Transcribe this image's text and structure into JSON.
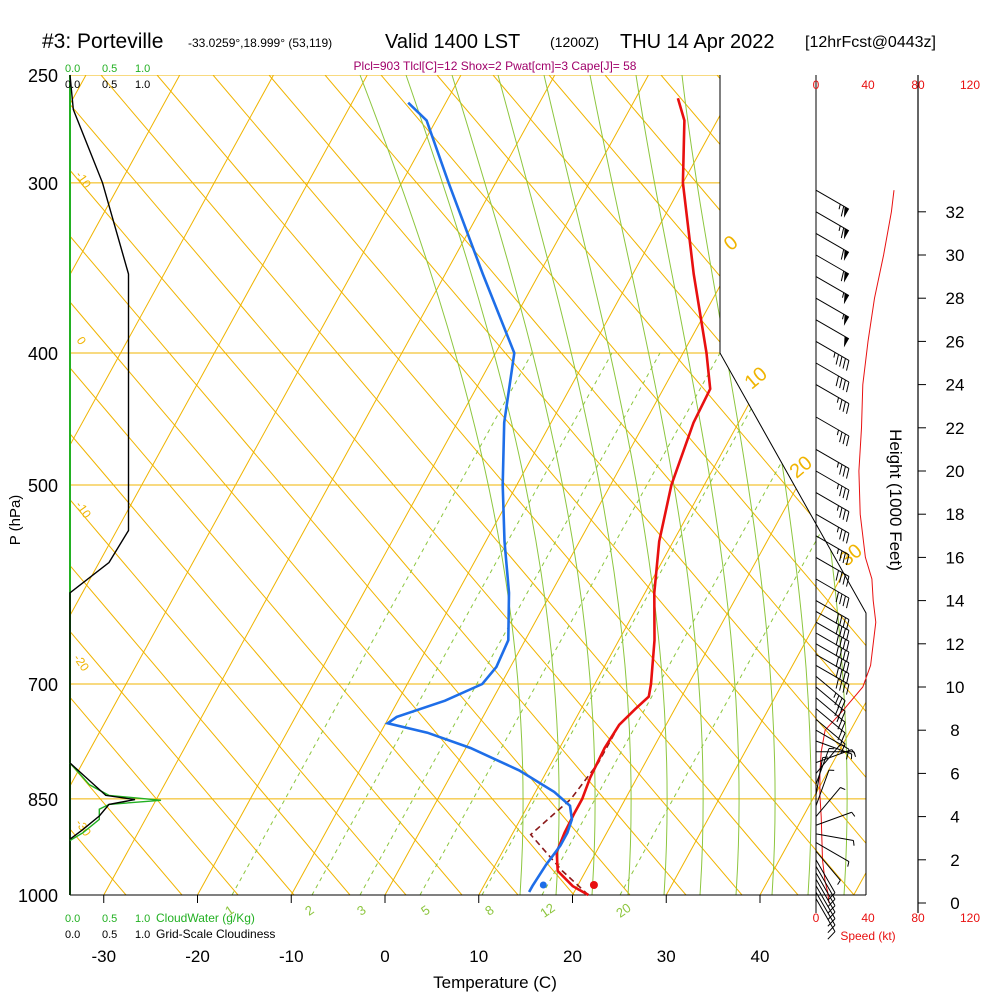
{
  "header": {
    "station": "#3: Porteville",
    "coords": "-33.0259°,18.999° (53,119)",
    "valid": "Valid 1400 LST",
    "zulu": "(1200Z)",
    "date": "THU 14 Apr 2022",
    "forecast": "[12hrFcst@0443z]"
  },
  "indices": "Plcl=903 Tlcl[C]=12 Shox=2 Pwat[cm]=3 Cape[J]= 58",
  "legends": {
    "cloudwater_ticks": [
      "0.0",
      "0.5",
      "1.0"
    ],
    "cloudwater_label": "CloudWater (g/Kg)",
    "cloudiness_ticks": [
      "0.0",
      "0.5",
      "1.0"
    ],
    "cloudiness_label": "Grid-Scale Cloudiness",
    "speed_ticks": [
      "0",
      "40",
      "80",
      "120"
    ],
    "speed_label": "Speed (kt)"
  },
  "colors": {
    "isotherm": "#f0b400",
    "dry_adiabat": "#8dc63f",
    "mixing_ratio": "#8dc63f",
    "temperature": "#e81010",
    "dewpoint": "#1e6ee8",
    "parcel": "#8b1a1a",
    "cloudwater": "#22b022",
    "cloudiness": "#000000",
    "wind_speed": "#e81010",
    "indices_text": "#a0006a"
  },
  "chart_data": {
    "type": "skew-t",
    "xlabel": "Temperature (C)",
    "ylabel": "P (hPa)",
    "y2label": "Height (1000 Feet)",
    "xticks": [
      -30,
      -20,
      -10,
      0,
      10,
      20,
      30,
      40
    ],
    "pressure_ticks": [
      250,
      300,
      400,
      500,
      700,
      850,
      1000
    ],
    "height_ticks_kft": [
      0,
      2,
      4,
      6,
      8,
      10,
      12,
      14,
      16,
      18,
      20,
      22,
      24,
      26,
      28,
      30,
      32
    ],
    "isotherm_labels": [
      "-10",
      "0",
      "10",
      "20",
      "30"
    ],
    "lower_isotherm_labels": [
      "0",
      "-10",
      "-20",
      "-30"
    ],
    "mixing_ratio_labels": [
      "1",
      "2",
      "3",
      "5",
      "8",
      "12",
      "20"
    ],
    "temperature": [
      [
        1000,
        21.7
      ],
      [
        985,
        19.5
      ],
      [
        960,
        17.0
      ],
      [
        930,
        15.8
      ],
      [
        900,
        15.5
      ],
      [
        870,
        15.4
      ],
      [
        850,
        15.4
      ],
      [
        820,
        15.0
      ],
      [
        780,
        14.8
      ],
      [
        750,
        15.0
      ],
      [
        730,
        15.8
      ],
      [
        715,
        16.5
      ],
      [
        700,
        16.0
      ],
      [
        650,
        13.8
      ],
      [
        600,
        11.0
      ],
      [
        550,
        8.5
      ],
      [
        500,
        6.5
      ],
      [
        450,
        5.2
      ],
      [
        425,
        5.0
      ],
      [
        400,
        2.5
      ],
      [
        350,
        -3.5
      ],
      [
        300,
        -10.0
      ],
      [
        270,
        -13.5
      ],
      [
        260,
        -15.5
      ]
    ],
    "dewpoint": [
      [
        995,
        15.2
      ],
      [
        985,
        15.2
      ],
      [
        950,
        15.4
      ],
      [
        920,
        15.8
      ],
      [
        900,
        15.8
      ],
      [
        880,
        15.5
      ],
      [
        860,
        14.5
      ],
      [
        840,
        12.0
      ],
      [
        810,
        7.0
      ],
      [
        780,
        0.5
      ],
      [
        760,
        -5.0
      ],
      [
        748,
        -9.8
      ],
      [
        740,
        -9.2
      ],
      [
        720,
        -5.0
      ],
      [
        700,
        -2.0
      ],
      [
        680,
        -1.5
      ],
      [
        650,
        -1.8
      ],
      [
        600,
        -4.5
      ],
      [
        550,
        -8.0
      ],
      [
        500,
        -11.5
      ],
      [
        450,
        -15.0
      ],
      [
        400,
        -18.0
      ],
      [
        350,
        -26.0
      ],
      [
        300,
        -35.0
      ],
      [
        270,
        -41.0
      ],
      [
        262,
        -44.0
      ]
    ],
    "surface_dewpoint_point": [
      1000,
      16.3
    ],
    "surface_temperature_point": [
      1000,
      21.7
    ],
    "parcel": [
      [
        1000,
        21.7
      ],
      [
        960,
        17.5
      ],
      [
        903,
        12.0
      ],
      [
        850,
        14.2
      ],
      [
        800,
        15.0
      ],
      [
        760,
        15.0
      ]
    ],
    "wind_speed_kt": [
      [
        0,
        10
      ],
      [
        0.5,
        9
      ],
      [
        1,
        7
      ],
      [
        2,
        5
      ],
      [
        4,
        4
      ],
      [
        5,
        3
      ],
      [
        6,
        3
      ],
      [
        7,
        4
      ],
      [
        8,
        7
      ],
      [
        9,
        22
      ],
      [
        10,
        36
      ],
      [
        11,
        42
      ],
      [
        12,
        44
      ],
      [
        13,
        46
      ],
      [
        14,
        44
      ],
      [
        15,
        43
      ],
      [
        16,
        38
      ],
      [
        18,
        34
      ],
      [
        20,
        33
      ],
      [
        22,
        35
      ],
      [
        24,
        36
      ],
      [
        26,
        40
      ],
      [
        28,
        45
      ],
      [
        30,
        52
      ],
      [
        32,
        58
      ],
      [
        33,
        60
      ]
    ],
    "wind_barbs": [
      {
        "h": 0.2,
        "dir": 330,
        "spd": 10
      },
      {
        "h": 0.5,
        "dir": 330,
        "spd": 10
      },
      {
        "h": 0.8,
        "dir": 330,
        "spd": 10
      },
      {
        "h": 1.1,
        "dir": 330,
        "spd": 10
      },
      {
        "h": 1.4,
        "dir": 330,
        "spd": 10
      },
      {
        "h": 1.7,
        "dir": 330,
        "spd": 10
      },
      {
        "h": 2.0,
        "dir": 330,
        "spd": 10
      },
      {
        "h": 2.4,
        "dir": 320,
        "spd": 5
      },
      {
        "h": 2.8,
        "dir": 300,
        "spd": 5
      },
      {
        "h": 3.2,
        "dir": 280,
        "spd": 5
      },
      {
        "h": 3.6,
        "dir": 250,
        "spd": 5
      },
      {
        "h": 4.0,
        "dir": 220,
        "spd": 5
      },
      {
        "h": 4.5,
        "dir": 200,
        "spd": 5
      },
      {
        "h": 5.0,
        "dir": 190,
        "spd": 5
      },
      {
        "h": 5.5,
        "dir": 200,
        "spd": 5
      },
      {
        "h": 6.0,
        "dir": 220,
        "spd": 5
      },
      {
        "h": 6.5,
        "dir": 250,
        "spd": 5
      },
      {
        "h": 7.0,
        "dir": 270,
        "spd": 5
      },
      {
        "h": 7.5,
        "dir": 290,
        "spd": 5
      },
      {
        "h": 8.0,
        "dir": 300,
        "spd": 10
      },
      {
        "h": 8.5,
        "dir": 310,
        "spd": 15
      },
      {
        "h": 9.0,
        "dir": 310,
        "spd": 20
      },
      {
        "h": 9.5,
        "dir": 310,
        "spd": 25
      },
      {
        "h": 10.0,
        "dir": 310,
        "spd": 30
      },
      {
        "h": 10.5,
        "dir": 310,
        "spd": 35
      },
      {
        "h": 11.0,
        "dir": 300,
        "spd": 40
      },
      {
        "h": 11.5,
        "dir": 300,
        "spd": 40
      },
      {
        "h": 12.0,
        "dir": 300,
        "spd": 40
      },
      {
        "h": 12.5,
        "dir": 300,
        "spd": 40
      },
      {
        "h": 13.0,
        "dir": 300,
        "spd": 40
      },
      {
        "h": 13.5,
        "dir": 300,
        "spd": 40
      },
      {
        "h": 14.0,
        "dir": 300,
        "spd": 40
      },
      {
        "h": 15.0,
        "dir": 300,
        "spd": 40
      },
      {
        "h": 16.0,
        "dir": 300,
        "spd": 40
      },
      {
        "h": 17.0,
        "dir": 300,
        "spd": 35
      },
      {
        "h": 18.0,
        "dir": 300,
        "spd": 35
      },
      {
        "h": 19.0,
        "dir": 300,
        "spd": 35
      },
      {
        "h": 20.0,
        "dir": 300,
        "spd": 35
      },
      {
        "h": 21.0,
        "dir": 300,
        "spd": 35
      },
      {
        "h": 22.5,
        "dir": 300,
        "spd": 35
      },
      {
        "h": 24.0,
        "dir": 300,
        "spd": 35
      },
      {
        "h": 25.0,
        "dir": 300,
        "spd": 40
      },
      {
        "h": 26.0,
        "dir": 300,
        "spd": 45
      },
      {
        "h": 27.0,
        "dir": 300,
        "spd": 50
      },
      {
        "h": 28.0,
        "dir": 300,
        "spd": 55
      },
      {
        "h": 29.0,
        "dir": 300,
        "spd": 55
      },
      {
        "h": 30.0,
        "dir": 300,
        "spd": 60
      },
      {
        "h": 31.0,
        "dir": 300,
        "spd": 60
      },
      {
        "h": 32.0,
        "dir": 300,
        "spd": 65
      },
      {
        "h": 33.0,
        "dir": 300,
        "spd": 65
      }
    ],
    "cloudiness_profile": [
      [
        250,
        0.0
      ],
      [
        265,
        0.05
      ],
      [
        300,
        0.5
      ],
      [
        350,
        0.9
      ],
      [
        420,
        0.9
      ],
      [
        500,
        0.9
      ],
      [
        540,
        0.9
      ],
      [
        570,
        0.6
      ],
      [
        600,
        0.0
      ],
      [
        1000,
        0.0
      ]
    ],
    "cloudwater_profile": [
      [
        800,
        0.0
      ],
      [
        830,
        0.3
      ],
      [
        845,
        0.6
      ],
      [
        852,
        1.4
      ],
      [
        858,
        0.6
      ],
      [
        865,
        0.45
      ],
      [
        880,
        0.45
      ],
      [
        900,
        0.2
      ],
      [
        912,
        0.0
      ]
    ]
  }
}
